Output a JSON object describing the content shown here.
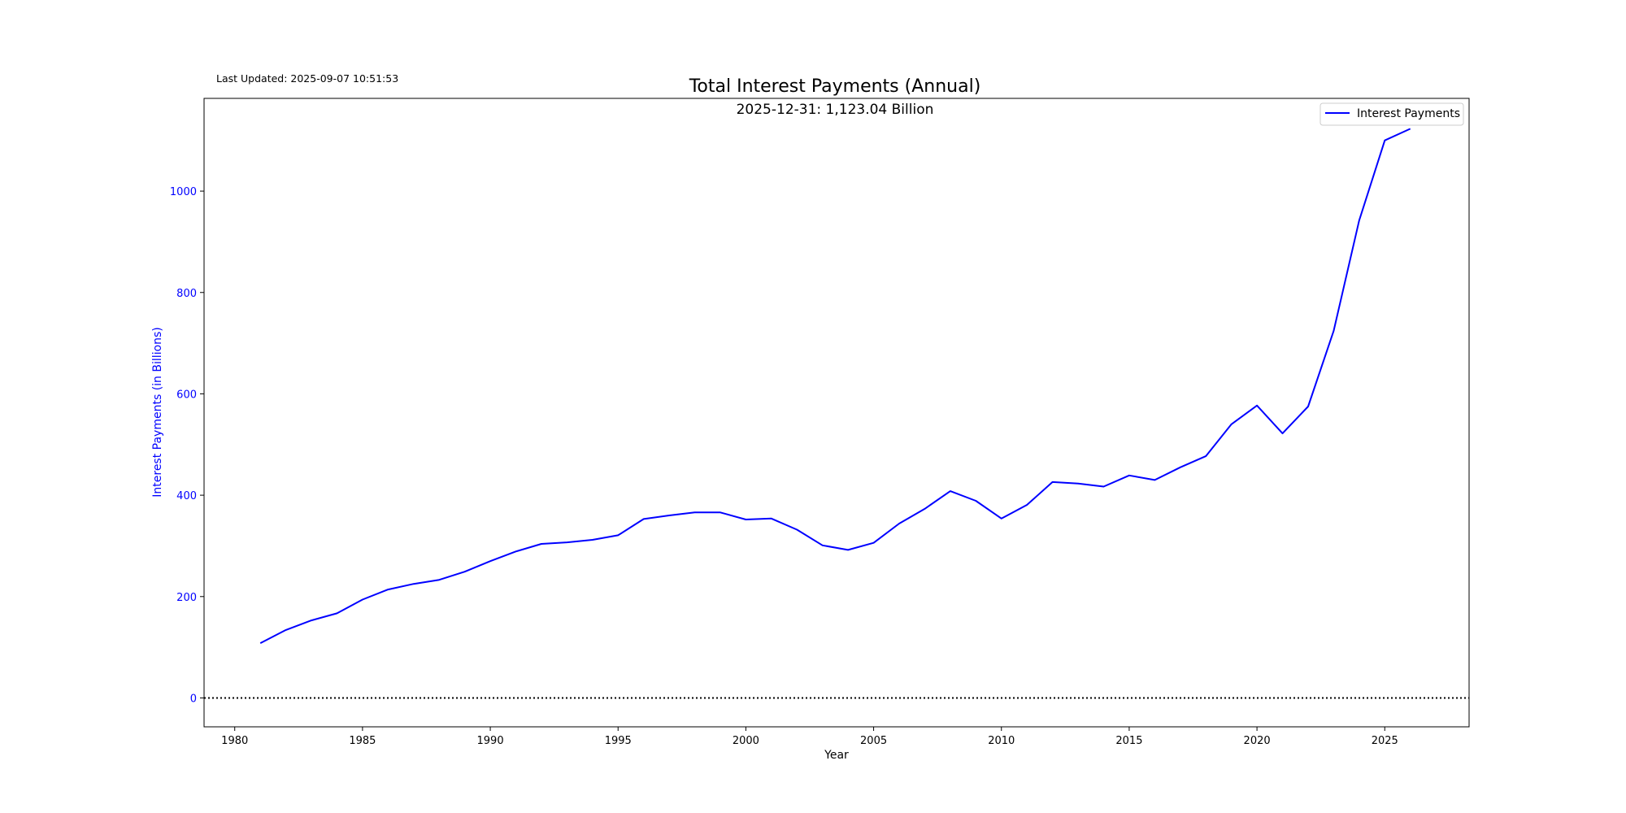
{
  "last_updated": "Last Updated: 2025-09-07 10:51:53",
  "chart_data": {
    "type": "line",
    "title": "Total Interest Payments (Annual)",
    "subtitle": "2025-12-31: 1,123.04 Billion",
    "xlabel": "Year",
    "ylabel": "Interest Payments (in Billions)",
    "xlim": [
      1978.8,
      2028.3
    ],
    "ylim": [
      -57,
      1183
    ],
    "xticks": [
      1980,
      1985,
      1990,
      1995,
      2000,
      2005,
      2010,
      2015,
      2020,
      2025
    ],
    "yticks": [
      0,
      200,
      400,
      600,
      800,
      1000
    ],
    "grid": false,
    "legend_position": "top-right",
    "reference_line": {
      "y": 0,
      "style": "dotted",
      "color": "#000000"
    },
    "series": [
      {
        "name": "Interest Payments",
        "color": "#0000ff",
        "x": [
          1981,
          1982,
          1983,
          1984,
          1985,
          1986,
          1987,
          1988,
          1989,
          1990,
          1991,
          1992,
          1993,
          1994,
          1995,
          1996,
          1997,
          1998,
          1999,
          2000,
          2001,
          2002,
          2003,
          2004,
          2005,
          2006,
          2007,
          2008,
          2009,
          2010,
          2011,
          2012,
          2013,
          2014,
          2015,
          2016,
          2017,
          2018,
          2019,
          2020,
          2021,
          2022,
          2023,
          2024,
          2025,
          2026
        ],
        "values": [
          108,
          134,
          153,
          167,
          194,
          214,
          225,
          233,
          249,
          270,
          289,
          304,
          307,
          312,
          321,
          353,
          360,
          366,
          366,
          352,
          354,
          332,
          301,
          292,
          306,
          344,
          373,
          408,
          389,
          354,
          381,
          426,
          423,
          417,
          439,
          430,
          455,
          477,
          540,
          577,
          522,
          575,
          724,
          942,
          1100,
          1123
        ]
      }
    ]
  }
}
